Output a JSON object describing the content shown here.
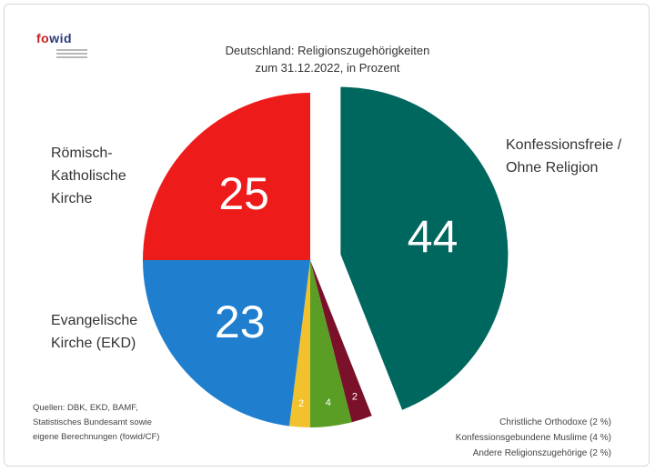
{
  "logo": {
    "text": "fowid"
  },
  "chart_data": {
    "type": "pie",
    "title_lines": [
      "Deutschland: Religionszugehörigkeiten",
      "zum 31.12.2022, in Prozent"
    ],
    "unit": "Prozent",
    "slices": [
      {
        "name": "Konfessionsfreie / Ohne Religion",
        "value": 44,
        "color": "#00675f",
        "exploded": true
      },
      {
        "name": "Andere Religionszugehörige",
        "value": 2,
        "color": "#7a1029"
      },
      {
        "name": "Konfessionsgebundene Muslime",
        "value": 4,
        "color": "#5b9e26"
      },
      {
        "name": "Christliche Orthodoxe",
        "value": 2,
        "color": "#f2c12e"
      },
      {
        "name": "Evangelische Kirche (EKD)",
        "value": 23,
        "color": "#1f7fce"
      },
      {
        "name": "Römisch-Katholische Kirche",
        "value": 25,
        "color": "#ee1b1b"
      }
    ]
  },
  "labels": {
    "rk_lines": [
      "Römisch-",
      "Katholische",
      "Kirche"
    ],
    "ek_lines": [
      "Evangelische",
      "Kirche (EKD)"
    ],
    "kf_lines": [
      "Konfessionsfreie /",
      "Ohne Religion"
    ]
  },
  "sources_lines": [
    "Quellen: DBK, EKD, BAMF,",
    "Statistisches Bundesamt sowie",
    "eigene Berechnungen (fowid/CF)"
  ],
  "notes_lines": [
    "Christliche Orthodoxe (2 %)",
    "Konfessionsgebundene Muslime (4 %)",
    "Andere Religionszugehörige (2 %)"
  ]
}
